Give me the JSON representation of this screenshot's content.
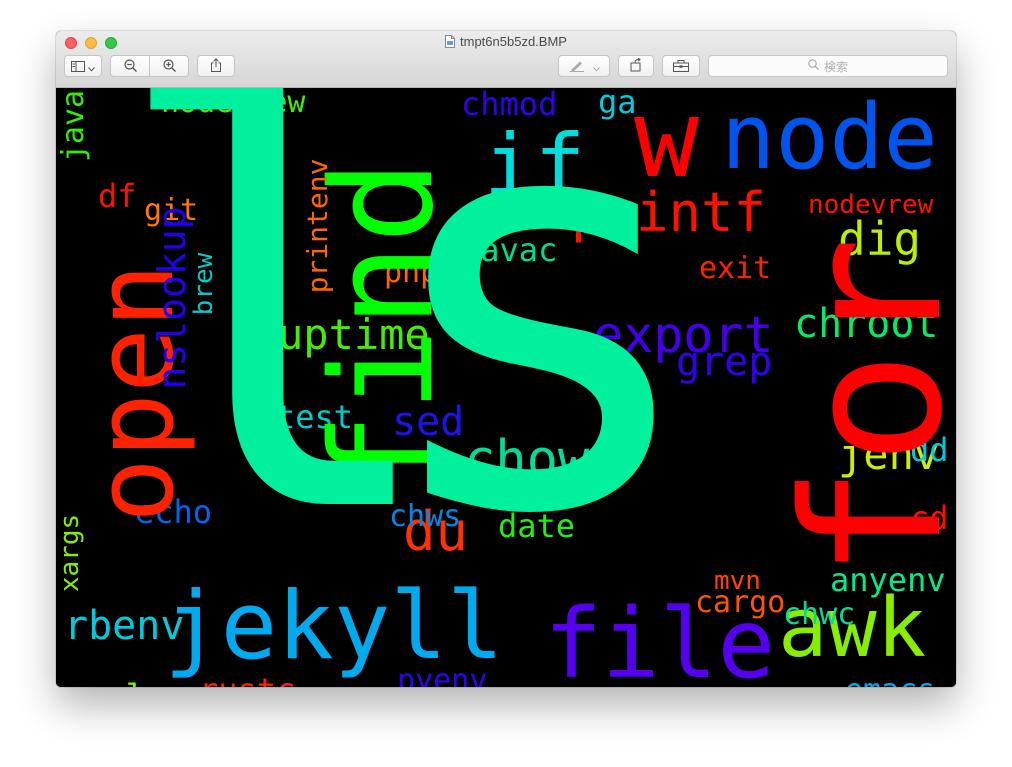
{
  "window": {
    "title": "tmpt6n5b5zd.BMP",
    "search_placeholder": "検索"
  },
  "icons": [
    "close-button",
    "minimize-button",
    "zoom-button",
    "document-icon",
    "sidebar-icon",
    "chevron-down-icon",
    "zoom-out-icon",
    "zoom-in-icon",
    "share-icon",
    "markup-pen-icon",
    "rotate-icon",
    "toolbox-icon",
    "search-icon"
  ],
  "wordcloud": {
    "words": [
      {
        "text": "ls",
        "color": "#00f09e"
      },
      {
        "text": "for",
        "color": "#ff0000"
      },
      {
        "text": "find",
        "color": "#00ff00"
      },
      {
        "text": "open",
        "color": "#ff2200"
      },
      {
        "text": "node",
        "color": "#0055ee"
      },
      {
        "text": "w",
        "color": "#ff0000"
      },
      {
        "text": "jekyll",
        "color": "#00aaee"
      },
      {
        "text": "file",
        "color": "#5500ee"
      },
      {
        "text": "awk",
        "color": "#88ee00"
      },
      {
        "text": "if",
        "color": "#00dddd"
      },
      {
        "text": "printf",
        "color": "#ff1100"
      },
      {
        "text": "chown",
        "color": "#00dd99"
      },
      {
        "text": "export",
        "color": "#4400ee"
      },
      {
        "text": "du",
        "color": "#ff3300"
      },
      {
        "text": "dig",
        "color": "#bbee00"
      },
      {
        "text": "chroot",
        "color": "#00ee66"
      },
      {
        "text": "uptime",
        "color": "#44ee00"
      },
      {
        "text": "nslookup",
        "color": "#2200ee"
      },
      {
        "text": "grep",
        "color": "#3300ee"
      },
      {
        "text": "jenv",
        "color": "#ccee00"
      },
      {
        "text": "rbenv",
        "color": "#00ccdd"
      },
      {
        "text": "nodebrew",
        "color": "#44ee00"
      },
      {
        "text": "sed",
        "color": "#2211ee"
      },
      {
        "text": "chmod",
        "color": "#3300ee"
      },
      {
        "text": "javac",
        "color": "#00dd88"
      },
      {
        "text": "echo",
        "color": "#0066ee"
      },
      {
        "text": "test",
        "color": "#00cccc"
      },
      {
        "text": "date",
        "color": "#22ee11"
      },
      {
        "text": "chws",
        "color": "#0088ee"
      },
      {
        "text": "cargo",
        "color": "#ff5500"
      },
      {
        "text": "mvn",
        "color": "#ff4400"
      },
      {
        "text": "anyenv",
        "color": "#00ee88"
      },
      {
        "text": "chwc",
        "color": "#00dd99"
      },
      {
        "text": "curl",
        "color": "#88ee00"
      },
      {
        "text": "rustc",
        "color": "#ff2200"
      },
      {
        "text": "pyenv",
        "color": "#3300ee"
      },
      {
        "text": "emacs",
        "color": "#00aaee"
      },
      {
        "text": "git",
        "color": "#ff7700"
      },
      {
        "text": "df",
        "color": "#ff1100"
      },
      {
        "text": "java",
        "color": "#33ee00"
      },
      {
        "text": "printenv",
        "color": "#ff6600"
      },
      {
        "text": "brew",
        "color": "#00cccc"
      },
      {
        "text": "php",
        "color": "#ff6600"
      },
      {
        "text": "ga",
        "color": "#00ccdd"
      },
      {
        "text": "nodevrew",
        "color": "#ff1100"
      },
      {
        "text": "exit",
        "color": "#ff2200"
      },
      {
        "text": "dd",
        "color": "#00ccdd"
      },
      {
        "text": "cd",
        "color": "#ff1100"
      },
      {
        "text": "xargs",
        "color": "#88ee00"
      }
    ]
  }
}
